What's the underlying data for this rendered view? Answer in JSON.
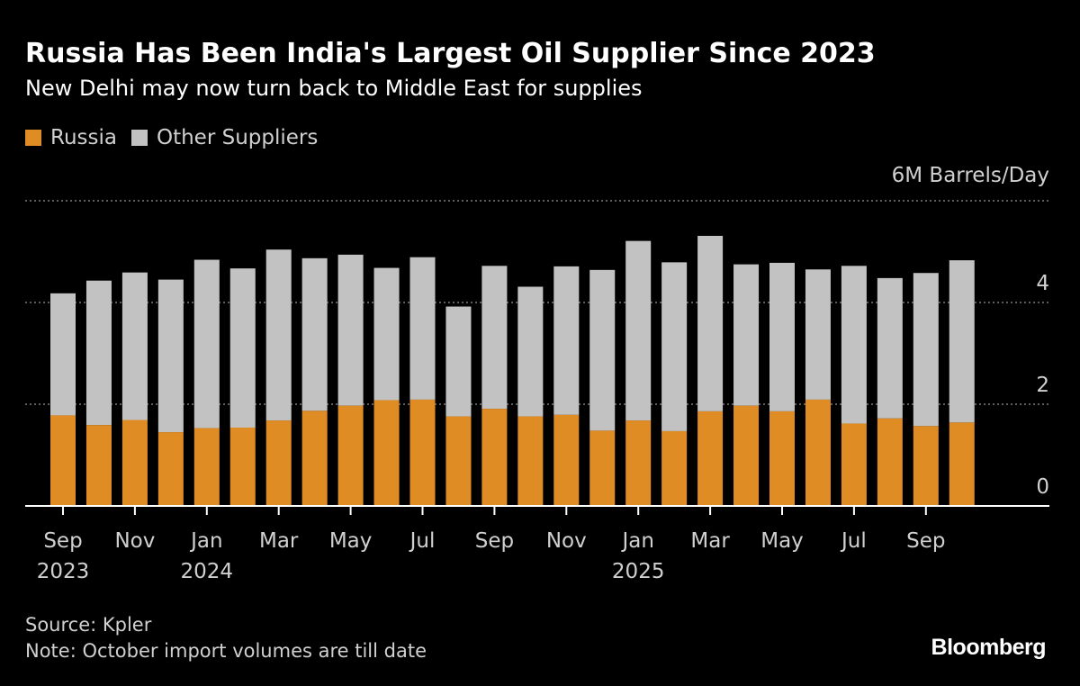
{
  "title": "Russia Has Been India's Largest Oil Supplier Since 2023",
  "subtitle": "New Delhi may now turn back to Middle East for supplies",
  "colors": {
    "background": "#000000",
    "russia": "#e08c24",
    "other": "#c2c2c2",
    "text": "#ffffff",
    "muted_text": "#d0d0d0",
    "grid": "#7a7a7a"
  },
  "chart_data": {
    "type": "bar",
    "stacked": true,
    "title": "Russia Has Been India's Largest Oil Supplier Since 2023",
    "subtitle": "New Delhi may now turn back to Middle East for supplies",
    "unit_label": "6M Barrels/Day",
    "ylim": [
      0,
      6
    ],
    "yticks": [
      0,
      2,
      4
    ],
    "yaxis_position": "right",
    "grid": true,
    "legend_position": "top-left",
    "categories": [
      "2023-09",
      "2023-10",
      "2023-11",
      "2023-12",
      "2024-01",
      "2024-02",
      "2024-03",
      "2024-04",
      "2024-05",
      "2024-06",
      "2024-07",
      "2024-08",
      "2024-09",
      "2024-10",
      "2024-11",
      "2024-12",
      "2025-01",
      "2025-02",
      "2025-03",
      "2025-04",
      "2025-05",
      "2025-06",
      "2025-07",
      "2025-08",
      "2025-09",
      "2025-10"
    ],
    "x_tick_labels": [
      {
        "category": "2023-09",
        "month": "Sep",
        "year": "2023"
      },
      {
        "category": "2023-11",
        "month": "Nov",
        "year": ""
      },
      {
        "category": "2024-01",
        "month": "Jan",
        "year": "2024"
      },
      {
        "category": "2024-03",
        "month": "Mar",
        "year": ""
      },
      {
        "category": "2024-05",
        "month": "May",
        "year": ""
      },
      {
        "category": "2024-07",
        "month": "Jul",
        "year": ""
      },
      {
        "category": "2024-09",
        "month": "Sep",
        "year": ""
      },
      {
        "category": "2024-11",
        "month": "Nov",
        "year": ""
      },
      {
        "category": "2025-01",
        "month": "Jan",
        "year": "2025"
      },
      {
        "category": "2025-03",
        "month": "Mar",
        "year": ""
      },
      {
        "category": "2025-05",
        "month": "May",
        "year": ""
      },
      {
        "category": "2025-07",
        "month": "Jul",
        "year": ""
      },
      {
        "category": "2025-09",
        "month": "Sep",
        "year": ""
      }
    ],
    "series": [
      {
        "name": "Russia",
        "color": "#e08c24",
        "values": [
          1.78,
          1.59,
          1.69,
          1.45,
          1.53,
          1.54,
          1.68,
          1.87,
          1.97,
          2.08,
          2.09,
          1.76,
          1.91,
          1.76,
          1.79,
          1.48,
          1.68,
          1.47,
          1.86,
          1.97,
          1.86,
          2.09,
          1.62,
          1.72,
          1.57,
          1.64
        ]
      },
      {
        "name": "Other Suppliers",
        "color": "#c2c2c2",
        "values": [
          2.4,
          2.84,
          2.9,
          3.0,
          3.31,
          3.13,
          3.36,
          3.0,
          2.97,
          2.6,
          2.8,
          2.16,
          2.81,
          2.55,
          2.92,
          3.16,
          3.53,
          3.32,
          3.45,
          2.78,
          2.92,
          2.56,
          3.1,
          2.76,
          3.01,
          3.19
        ]
      }
    ]
  },
  "legend": [
    {
      "label": "Russia",
      "color": "#e08c24"
    },
    {
      "label": "Other Suppliers",
      "color": "#c2c2c2"
    }
  ],
  "footer": {
    "source": "Source: Kpler",
    "note": "Note: October import volumes are till date"
  },
  "brand": "Bloomberg"
}
